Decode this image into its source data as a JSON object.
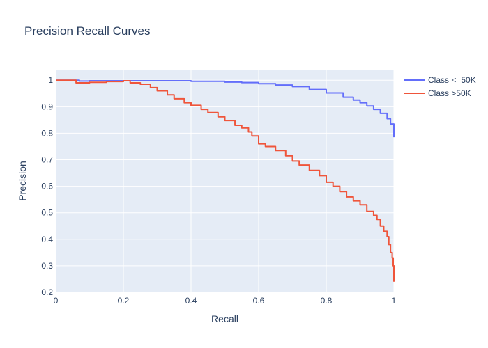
{
  "chart_data": {
    "type": "line",
    "title": "Precision Recall Curves",
    "xlabel": "Recall",
    "ylabel": "Precision",
    "xlim": [
      0,
      1
    ],
    "ylim": [
      0.2,
      1.04
    ],
    "xticks": [
      0,
      0.2,
      0.4,
      0.6,
      0.8,
      1
    ],
    "xtick_labels": [
      "0",
      "0.2",
      "0.4",
      "0.6",
      "0.8",
      "1"
    ],
    "yticks": [
      0.2,
      0.3,
      0.4,
      0.5,
      0.6,
      0.7,
      0.8,
      0.9,
      1
    ],
    "ytick_labels": [
      "0.2",
      "0.3",
      "0.4",
      "0.5",
      "0.6",
      "0.7",
      "0.8",
      "0.9",
      "1"
    ],
    "grid": true,
    "legend_position": "top-right",
    "series": [
      {
        "name": "Class <=50K",
        "color": "#636efa",
        "x": [
          0,
          0.07,
          0.07,
          0.1,
          0.2,
          0.3,
          0.4,
          0.5,
          0.55,
          0.6,
          0.65,
          0.7,
          0.75,
          0.8,
          0.85,
          0.88,
          0.9,
          0.92,
          0.94,
          0.96,
          0.98,
          0.99,
          1.0,
          1.0
        ],
        "y": [
          1.0,
          1.0,
          0.997,
          0.998,
          0.998,
          0.998,
          0.996,
          0.993,
          0.991,
          0.987,
          0.982,
          0.976,
          0.965,
          0.952,
          0.936,
          0.925,
          0.915,
          0.903,
          0.89,
          0.875,
          0.855,
          0.835,
          0.82,
          0.785
        ]
      },
      {
        "name": "Class >50K",
        "color": "#ef553b",
        "x": [
          0,
          0.06,
          0.06,
          0.1,
          0.15,
          0.2,
          0.22,
          0.25,
          0.28,
          0.3,
          0.33,
          0.35,
          0.38,
          0.4,
          0.43,
          0.45,
          0.48,
          0.5,
          0.53,
          0.55,
          0.57,
          0.58,
          0.6,
          0.62,
          0.65,
          0.68,
          0.7,
          0.72,
          0.75,
          0.78,
          0.8,
          0.82,
          0.84,
          0.86,
          0.88,
          0.9,
          0.92,
          0.94,
          0.95,
          0.96,
          0.97,
          0.98,
          0.985,
          0.99,
          0.995,
          0.998,
          1.0
        ],
        "y": [
          1.0,
          1.0,
          0.99,
          0.992,
          0.995,
          0.998,
          0.99,
          0.985,
          0.972,
          0.96,
          0.945,
          0.93,
          0.915,
          0.905,
          0.89,
          0.878,
          0.862,
          0.848,
          0.83,
          0.82,
          0.805,
          0.79,
          0.76,
          0.75,
          0.735,
          0.715,
          0.695,
          0.68,
          0.66,
          0.64,
          0.615,
          0.6,
          0.58,
          0.56,
          0.545,
          0.53,
          0.505,
          0.49,
          0.475,
          0.45,
          0.43,
          0.41,
          0.38,
          0.35,
          0.33,
          0.3,
          0.24
        ]
      }
    ]
  }
}
